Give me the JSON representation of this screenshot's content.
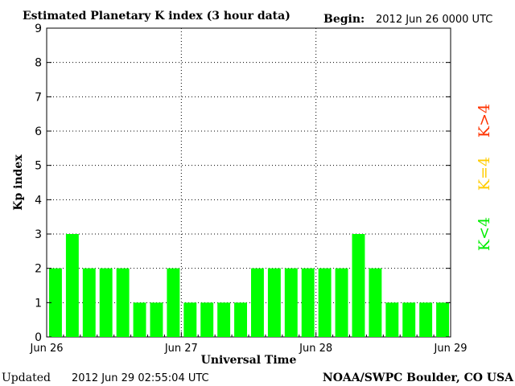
{
  "header": {
    "title": "Estimated Planetary K index (3 hour data)",
    "begin_label": "Begin:",
    "begin_value": "2012 Jun 26 0000 UTC"
  },
  "footer": {
    "updated_label": "Updated",
    "updated_value": "2012 Jun 29 02:55:04 UTC",
    "source": "NOAA/SWPC Boulder, CO USA"
  },
  "legend": {
    "k_greater": "K>4",
    "k_equal": "K=4",
    "k_less": "K<4"
  },
  "colors": {
    "bar_low": "#00ff00",
    "bar_equal": "#ffcc00",
    "bar_high": "#ff3300",
    "legend_high": "#ff3300",
    "legend_equal": "#ffcc00",
    "legend_low": "#00ee00"
  },
  "chart_data": {
    "type": "bar",
    "ylabel": "Kp index",
    "xlabel": "Universal Time",
    "ylim": [
      0,
      9
    ],
    "y_ticks": [
      "0",
      "1",
      "2",
      "3",
      "4",
      "5",
      "6",
      "7",
      "8",
      "9"
    ],
    "x_ticks": [
      "Jun 26",
      "Jun 27",
      "Jun 28",
      "Jun 29"
    ],
    "grid": true,
    "bars_per_day": 8,
    "values": [
      2,
      3,
      2,
      2,
      2,
      1,
      1,
      2,
      1,
      1,
      1,
      1,
      2,
      2,
      2,
      2,
      2,
      2,
      3,
      2,
      1,
      1,
      1,
      1
    ]
  }
}
